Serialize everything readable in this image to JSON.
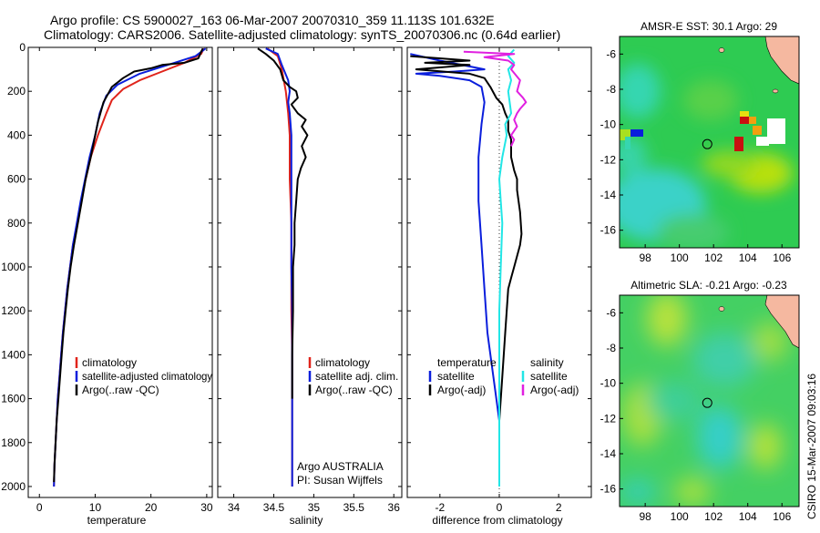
{
  "title": {
    "line1": "Argo profile: CS 5900027_163 06-Mar-2007 20070310_359 11.113S 101.632E",
    "line2": "Climatology: CARS2006. Satellite-adjusted climatology: synTS_20070306.nc (0.64d earlier)"
  },
  "side_label": "CSIRO 15-Mar-2007 09:03:16",
  "colors": {
    "red": "#e0241b",
    "blue": "#0a1edc",
    "black": "#000000",
    "cyan": "#22e6e6",
    "magenta": "#e020e0"
  },
  "chart_data": [
    {
      "id": "temperature",
      "type": "line",
      "xlabel": "temperature",
      "xlim": [
        -2,
        31
      ],
      "ylim": [
        0,
        2050
      ],
      "xticks": [
        0,
        10,
        20,
        30
      ],
      "yticks": [
        0,
        200,
        400,
        600,
        800,
        1000,
        1200,
        1400,
        1600,
        1800,
        2000
      ],
      "legend": {
        "position": "lower-right",
        "entries": [
          "climatology",
          "satellite-adjusted climatology",
          "Argo(..raw -QC)"
        ]
      },
      "series": [
        {
          "name": "climatology",
          "color": "red",
          "points": [
            [
              29.5,
              5
            ],
            [
              29,
              30
            ],
            [
              26,
              70
            ],
            [
              22,
              110
            ],
            [
              18,
              150
            ],
            [
              15,
              190
            ],
            [
              13,
              240
            ],
            [
              12,
              300
            ],
            [
              10.5,
              400
            ],
            [
              9.2,
              500
            ],
            [
              8.3,
              600
            ],
            [
              7.5,
              700
            ],
            [
              6.8,
              800
            ],
            [
              6,
              900
            ],
            [
              5.5,
              1000
            ],
            [
              5,
              1100
            ],
            [
              4.6,
              1200
            ],
            [
              4.2,
              1300
            ],
            [
              3.9,
              1400
            ],
            [
              3.6,
              1500
            ],
            [
              3.3,
              1600
            ],
            [
              3.1,
              1700
            ],
            [
              2.9,
              1800
            ],
            [
              2.7,
              1900
            ],
            [
              2.6,
              2000
            ]
          ]
        },
        {
          "name": "satellite-adjusted climatology",
          "color": "blue",
          "points": [
            [
              29.8,
              5
            ],
            [
              28,
              40
            ],
            [
              23,
              80
            ],
            [
              18,
              120
            ],
            [
              14,
              170
            ],
            [
              12,
              220
            ],
            [
              10.8,
              300
            ],
            [
              10,
              400
            ],
            [
              9,
              500
            ],
            [
              8.2,
              600
            ],
            [
              7.4,
              700
            ],
            [
              6.7,
              800
            ],
            [
              6,
              900
            ],
            [
              5.5,
              1000
            ],
            [
              5,
              1100
            ],
            [
              4.6,
              1200
            ],
            [
              4.2,
              1300
            ],
            [
              3.9,
              1400
            ],
            [
              3.6,
              1500
            ],
            [
              3.3,
              1600
            ],
            [
              3.1,
              1700
            ],
            [
              2.9,
              1800
            ],
            [
              2.7,
              1900
            ],
            [
              2.6,
              2000
            ]
          ]
        },
        {
          "name": "Argo(..raw -QC)",
          "color": "black",
          "points": [
            [
              29.3,
              5
            ],
            [
              29,
              20
            ],
            [
              28.5,
              50
            ],
            [
              26,
              70
            ],
            [
              22,
              80
            ],
            [
              20,
              95
            ],
            [
              17,
              110
            ],
            [
              15,
              140
            ],
            [
              13,
              180
            ],
            [
              11.5,
              250
            ],
            [
              10.5,
              340
            ],
            [
              10,
              400
            ],
            [
              9.2,
              500
            ],
            [
              8.3,
              600
            ],
            [
              7.6,
              700
            ],
            [
              6.9,
              800
            ],
            [
              6.2,
              900
            ],
            [
              5.6,
              1000
            ],
            [
              5.1,
              1100
            ],
            [
              4.7,
              1200
            ],
            [
              4.3,
              1300
            ],
            [
              4,
              1400
            ],
            [
              3.7,
              1500
            ],
            [
              3.4,
              1600
            ],
            [
              3.1,
              1700
            ],
            [
              2.9,
              1800
            ],
            [
              2.7,
              1900
            ],
            [
              2.6,
              1980
            ]
          ]
        }
      ]
    },
    {
      "id": "salinity",
      "type": "line",
      "xlabel": "salinity",
      "xlim": [
        33.8,
        36.1
      ],
      "ylim": [
        0,
        2050
      ],
      "xticks": [
        34,
        34.5,
        35,
        35.5,
        36
      ],
      "yticks": [
        0,
        200,
        400,
        600,
        800,
        1000,
        1200,
        1400,
        1600,
        1800,
        2000
      ],
      "legend": {
        "position": "lower-right",
        "entries": [
          "climatology",
          "satellite adj. clim.",
          "Argo(..raw -QC)"
        ]
      },
      "annotation": [
        "Argo AUSTRALIA",
        "PI: Susan Wijffels"
      ],
      "series": [
        {
          "name": "climatology",
          "color": "red",
          "points": [
            [
              34.42,
              5
            ],
            [
              34.55,
              40
            ],
            [
              34.6,
              100
            ],
            [
              34.65,
              200
            ],
            [
              34.68,
              300
            ],
            [
              34.7,
              400
            ],
            [
              34.7,
              600
            ],
            [
              34.72,
              800
            ],
            [
              34.72,
              1000
            ],
            [
              34.72,
              1200
            ],
            [
              34.73,
              1400
            ],
            [
              34.73,
              1600
            ],
            [
              34.73,
              1800
            ],
            [
              34.73,
              2000
            ]
          ]
        },
        {
          "name": "satellite adj. clim.",
          "color": "blue",
          "points": [
            [
              34.4,
              5
            ],
            [
              34.55,
              30
            ],
            [
              34.6,
              80
            ],
            [
              34.68,
              150
            ],
            [
              34.7,
              200
            ],
            [
              34.68,
              250
            ],
            [
              34.7,
              300
            ],
            [
              34.72,
              400
            ],
            [
              34.72,
              600
            ],
            [
              34.72,
              800
            ],
            [
              34.72,
              1000
            ],
            [
              34.73,
              1200
            ],
            [
              34.73,
              1400
            ],
            [
              34.73,
              1600
            ],
            [
              34.73,
              1800
            ],
            [
              34.73,
              2000
            ]
          ]
        },
        {
          "name": "Argo(..raw -QC)",
          "color": "black",
          "points": [
            [
              34.3,
              5
            ],
            [
              34.4,
              30
            ],
            [
              34.5,
              60
            ],
            [
              34.58,
              100
            ],
            [
              34.62,
              150
            ],
            [
              34.7,
              180
            ],
            [
              34.78,
              200
            ],
            [
              34.8,
              230
            ],
            [
              34.72,
              260
            ],
            [
              34.8,
              300
            ],
            [
              34.9,
              330
            ],
            [
              34.85,
              360
            ],
            [
              34.92,
              400
            ],
            [
              34.85,
              450
            ],
            [
              34.9,
              500
            ],
            [
              34.84,
              550
            ],
            [
              34.8,
              600
            ],
            [
              34.78,
              700
            ],
            [
              34.76,
              800
            ],
            [
              34.76,
              900
            ],
            [
              34.74,
              1000
            ],
            [
              34.74,
              1200
            ],
            [
              34.73,
              1400
            ],
            [
              34.73,
              1600
            ]
          ]
        }
      ]
    },
    {
      "id": "difference",
      "type": "line",
      "xlabel": "difference from climatology",
      "xlim": [
        -3.1,
        3.1
      ],
      "ylim": [
        0,
        2050
      ],
      "xticks": [
        -2,
        0,
        2
      ],
      "yticks": [
        0,
        200,
        400,
        600,
        800,
        1000,
        1200,
        1400,
        1600,
        1800,
        2000
      ],
      "legend": {
        "position": "lower-center",
        "left_header": "temperature",
        "left_entries": [
          "satellite",
          "Argo(-adj)"
        ],
        "right_header": "salinity",
        "right_entries": [
          "satellite",
          "Argo(-adj)"
        ]
      },
      "series": [
        {
          "name": "temperature satellite",
          "color": "blue",
          "points": [
            [
              -3,
              30
            ],
            [
              -2,
              60
            ],
            [
              -0.5,
              100
            ],
            [
              -1.5,
              110
            ],
            [
              -2.8,
              120
            ],
            [
              -2,
              130
            ],
            [
              -1,
              150
            ],
            [
              -0.6,
              180
            ],
            [
              -0.5,
              250
            ],
            [
              -0.6,
              350
            ],
            [
              -0.7,
              500
            ],
            [
              -0.7,
              700
            ],
            [
              -0.6,
              900
            ],
            [
              -0.5,
              1100
            ],
            [
              -0.4,
              1300
            ],
            [
              -0.2,
              1500
            ],
            [
              0,
              1700
            ],
            [
              0,
              2000
            ]
          ]
        },
        {
          "name": "temperature Argo(-adj)",
          "color": "black",
          "points": [
            [
              -3,
              40
            ],
            [
              -1,
              60
            ],
            [
              -2.5,
              70
            ],
            [
              -1,
              80
            ],
            [
              -2.8,
              100
            ],
            [
              -1,
              120
            ],
            [
              -0.5,
              140
            ],
            [
              -0.3,
              180
            ],
            [
              -0.1,
              230
            ],
            [
              0.1,
              260
            ],
            [
              0.2,
              300
            ],
            [
              0.3,
              330
            ],
            [
              0.3,
              380
            ],
            [
              0.4,
              420
            ],
            [
              0.4,
              500
            ],
            [
              0.5,
              560
            ],
            [
              0.6,
              600
            ],
            [
              0.6,
              650
            ],
            [
              0.7,
              750
            ],
            [
              0.75,
              850
            ],
            [
              0.7,
              900
            ],
            [
              0.5,
              1000
            ],
            [
              0.4,
              1050
            ],
            [
              0.3,
              1100
            ],
            [
              0.2,
              1300
            ],
            [
              0.1,
              1500
            ],
            [
              0,
              1700
            ],
            [
              0,
              1980
            ]
          ]
        },
        {
          "name": "salinity satellite",
          "color": "cyan",
          "points": [
            [
              0.5,
              10
            ],
            [
              0.3,
              40
            ],
            [
              0.5,
              70
            ],
            [
              0.3,
              100
            ],
            [
              0.4,
              150
            ],
            [
              0.3,
              200
            ],
            [
              0.4,
              300
            ],
            [
              0.2,
              350
            ],
            [
              0.25,
              400
            ],
            [
              0.1,
              500
            ],
            [
              0,
              600
            ],
            [
              0.05,
              700
            ],
            [
              0.1,
              800
            ],
            [
              0.05,
              1000
            ],
            [
              0,
              1200
            ],
            [
              0,
              1400
            ],
            [
              0,
              1600
            ],
            [
              0,
              1800
            ],
            [
              0,
              2000
            ]
          ]
        },
        {
          "name": "salinity Argo(-adj)",
          "color": "magenta",
          "points": [
            [
              -1.2,
              20
            ],
            [
              0.5,
              30
            ],
            [
              -0.5,
              45
            ],
            [
              0.3,
              60
            ],
            [
              0.5,
              80
            ],
            [
              0.4,
              100
            ],
            [
              0.7,
              150
            ],
            [
              0.6,
              200
            ],
            [
              0.8,
              230
            ],
            [
              0.9,
              250
            ],
            [
              0.7,
              280
            ],
            [
              0.6,
              300
            ],
            [
              0.5,
              330
            ],
            [
              0.6,
              360
            ],
            [
              0.4,
              400
            ],
            [
              0.5,
              420
            ],
            [
              0.4,
              450
            ]
          ]
        }
      ]
    },
    {
      "id": "sst_map",
      "type": "heatmap",
      "title": "AMSR-E SST: 30.1 Argo: 29",
      "xlim": [
        96.5,
        107
      ],
      "ylim": [
        -17,
        -5
      ],
      "xticks": [
        98,
        100,
        102,
        104,
        106
      ],
      "yticks": [
        -6,
        -8,
        -10,
        -12,
        -14,
        -16
      ],
      "argo_position": [
        101.632,
        -11.113
      ]
    },
    {
      "id": "sla_map",
      "type": "heatmap",
      "title": "Altimetric SLA: -0.21 Argo: -0.23",
      "xlim": [
        96.5,
        107
      ],
      "ylim": [
        -17,
        -5
      ],
      "xticks": [
        98,
        100,
        102,
        104,
        106
      ],
      "yticks": [
        -6,
        -8,
        -10,
        -12,
        -14,
        -16
      ],
      "argo_position": [
        101.632,
        -11.113
      ]
    }
  ]
}
